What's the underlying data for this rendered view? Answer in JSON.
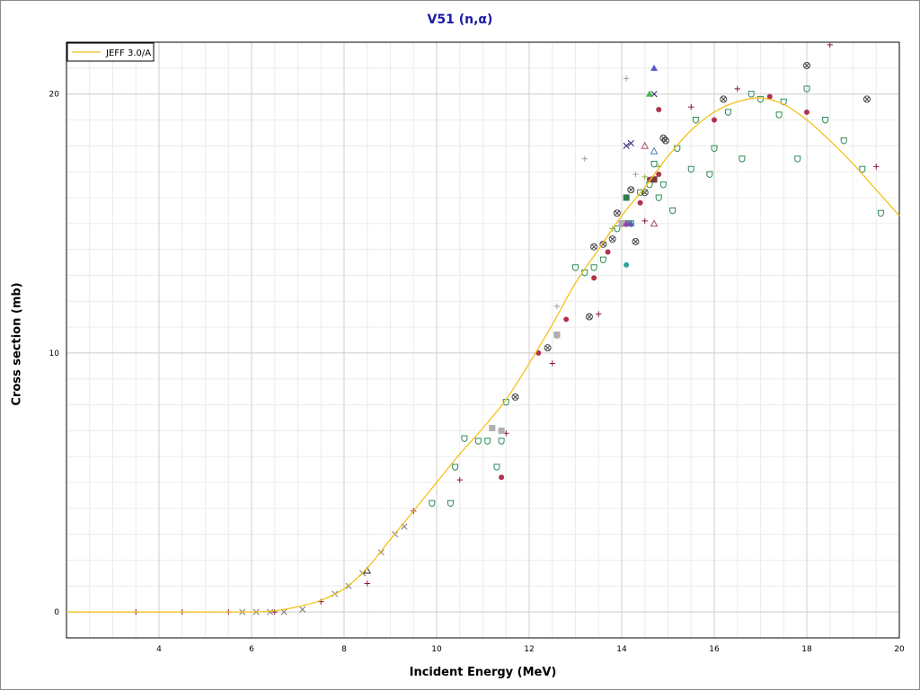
{
  "chart_data": {
    "type": "scatter",
    "title": "V51 (n,α)",
    "xlabel": "Incident Energy (MeV)",
    "ylabel": "Cross section (mb)",
    "xlim": [
      2.0,
      20.0
    ],
    "ylim": [
      -1.0,
      22.0
    ],
    "x_ticks": [
      4,
      6,
      8,
      10,
      12,
      14,
      16,
      18,
      20
    ],
    "y_ticks": [
      0,
      10,
      20
    ],
    "grid": true,
    "legend_position": "top-left",
    "colors": {
      "evaluation": "#f2c21b",
      "grid_major": "#cfcfcf",
      "grid_minor": "#ececec",
      "title": "#1a1aa6"
    },
    "series": [
      {
        "name": "JEFF 3.0/A",
        "kind": "line",
        "x": [
          2.0,
          3.0,
          4.0,
          5.0,
          6.0,
          6.5,
          7.0,
          7.5,
          8.0,
          8.5,
          9.0,
          9.5,
          10.0,
          10.5,
          11.0,
          11.5,
          12.0,
          12.5,
          13.0,
          13.5,
          14.0,
          14.5,
          15.0,
          15.5,
          16.0,
          16.5,
          17.0,
          17.5,
          18.0,
          18.5,
          19.0,
          19.5,
          20.0
        ],
        "y": [
          0,
          0,
          0,
          0,
          0,
          0.05,
          0.2,
          0.45,
          0.9,
          1.7,
          2.8,
          3.9,
          5.0,
          6.1,
          7.1,
          8.2,
          9.6,
          11.1,
          12.7,
          14.0,
          15.3,
          16.4,
          17.6,
          18.6,
          19.3,
          19.7,
          19.85,
          19.6,
          19.0,
          18.2,
          17.3,
          16.3,
          15.3
        ]
      }
    ],
    "experimental": [
      {
        "m": "plus",
        "c": "#8b1a3a",
        "p": [
          [
            3.5,
            0
          ],
          [
            4.5,
            0
          ],
          [
            5.5,
            0
          ],
          [
            6.5,
            0
          ],
          [
            7.5,
            0.4
          ],
          [
            8.5,
            1.1
          ],
          [
            9.5,
            3.9
          ],
          [
            10.5,
            5.1
          ],
          [
            11.5,
            6.9
          ],
          [
            12.5,
            9.6
          ],
          [
            13.5,
            11.5
          ],
          [
            14.5,
            15.1
          ],
          [
            15.5,
            19.5
          ],
          [
            16.5,
            20.2
          ],
          [
            18.5,
            21.9
          ],
          [
            19.5,
            17.2
          ]
        ]
      },
      {
        "m": "plus",
        "c": "#a0a0a0",
        "p": [
          [
            12.6,
            11.8
          ],
          [
            13.2,
            17.5
          ],
          [
            14.1,
            20.6
          ],
          [
            14.3,
            16.9
          ]
        ]
      },
      {
        "m": "plus",
        "c": "#8ab24a",
        "p": [
          [
            13.8,
            14.8
          ],
          [
            14.1,
            16.0
          ],
          [
            14.5,
            16.8
          ],
          [
            14.8,
            17.2
          ]
        ]
      },
      {
        "m": "x",
        "c": "#7a7a7a",
        "p": [
          [
            5.8,
            0
          ],
          [
            6.1,
            0
          ],
          [
            6.4,
            0
          ],
          [
            6.7,
            0
          ],
          [
            7.1,
            0.1
          ],
          [
            7.8,
            0.7
          ],
          [
            8.1,
            1.0
          ],
          [
            8.4,
            1.5
          ],
          [
            8.8,
            2.3
          ],
          [
            9.1,
            3.0
          ],
          [
            9.3,
            3.3
          ]
        ]
      },
      {
        "m": "x",
        "c": "#2b1f6e",
        "p": [
          [
            14.1,
            18.0
          ],
          [
            14.2,
            18.1
          ],
          [
            14.7,
            20.0
          ]
        ]
      },
      {
        "m": "circle",
        "c": "#b0334d",
        "p": [
          [
            11.4,
            5.2
          ],
          [
            12.2,
            10.0
          ],
          [
            12.8,
            11.3
          ],
          [
            13.4,
            12.9
          ],
          [
            13.7,
            13.9
          ],
          [
            14.4,
            15.8
          ],
          [
            14.6,
            16.7
          ],
          [
            14.8,
            16.9
          ],
          [
            14.8,
            19.4
          ],
          [
            16.0,
            19.0
          ],
          [
            17.2,
            19.9
          ],
          [
            18.0,
            19.3
          ]
        ]
      },
      {
        "m": "circle",
        "c": "#2aa3a3",
        "p": [
          [
            14.1,
            13.4
          ]
        ]
      },
      {
        "m": "shield",
        "c": "#2e8b57",
        "p": [
          [
            9.9,
            4.2
          ],
          [
            10.3,
            4.2
          ],
          [
            10.4,
            5.6
          ],
          [
            10.6,
            6.7
          ],
          [
            10.9,
            6.6
          ],
          [
            11.1,
            6.6
          ],
          [
            11.3,
            5.6
          ],
          [
            11.4,
            6.6
          ],
          [
            11.5,
            8.1
          ],
          [
            12.6,
            10.7
          ],
          [
            13.0,
            13.3
          ],
          [
            13.2,
            13.1
          ],
          [
            13.4,
            13.3
          ],
          [
            13.6,
            13.6
          ],
          [
            13.9,
            14.8
          ],
          [
            14.0,
            15.0
          ],
          [
            14.1,
            15.0
          ],
          [
            14.2,
            15.0
          ],
          [
            14.4,
            16.2
          ],
          [
            14.6,
            16.5
          ],
          [
            14.7,
            17.3
          ],
          [
            14.8,
            16.0
          ],
          [
            14.9,
            16.5
          ],
          [
            15.1,
            15.5
          ],
          [
            15.2,
            17.9
          ],
          [
            15.5,
            17.1
          ],
          [
            15.6,
            19.0
          ],
          [
            15.9,
            16.9
          ],
          [
            16.0,
            17.9
          ],
          [
            16.3,
            19.3
          ],
          [
            16.6,
            17.5
          ],
          [
            16.8,
            20.0
          ],
          [
            17.0,
            19.8
          ],
          [
            17.4,
            19.2
          ],
          [
            17.5,
            19.7
          ],
          [
            17.8,
            17.5
          ],
          [
            18.0,
            20.2
          ],
          [
            18.4,
            19.0
          ],
          [
            18.8,
            18.2
          ],
          [
            19.2,
            17.1
          ],
          [
            19.6,
            15.4
          ]
        ]
      },
      {
        "m": "circlex",
        "c": "#444444",
        "p": [
          [
            11.7,
            8.3
          ],
          [
            12.4,
            10.2
          ],
          [
            13.3,
            11.4
          ],
          [
            13.4,
            14.1
          ],
          [
            13.6,
            14.2
          ],
          [
            13.8,
            14.4
          ],
          [
            13.9,
            15.4
          ],
          [
            14.2,
            16.3
          ],
          [
            14.3,
            14.3
          ],
          [
            14.5,
            16.2
          ],
          [
            14.9,
            18.3
          ],
          [
            14.95,
            18.2
          ],
          [
            16.2,
            19.8
          ],
          [
            18.0,
            21.1
          ],
          [
            19.3,
            19.8
          ]
        ]
      },
      {
        "m": "square",
        "c": "#2e7a4e",
        "p": [
          [
            14.1,
            16.0
          ]
        ]
      },
      {
        "m": "square",
        "c": "#7a3a3a",
        "p": [
          [
            14.7,
            16.7
          ]
        ]
      },
      {
        "m": "square",
        "c": "#b0b0b0",
        "p": [
          [
            11.2,
            7.1
          ],
          [
            11.4,
            7.0
          ],
          [
            12.6,
            10.7
          ],
          [
            14.0,
            15.0
          ]
        ]
      },
      {
        "m": "triangle",
        "c": "#5a5acb",
        "p": [
          [
            14.1,
            15.0
          ],
          [
            14.2,
            15.0
          ],
          [
            14.7,
            21.0
          ]
        ]
      },
      {
        "m": "triangle",
        "c": "#a03fb0",
        "p": [
          [
            14.1,
            15.0
          ]
        ]
      },
      {
        "m": "triangle",
        "c": "#47b847",
        "p": [
          [
            14.6,
            20.0
          ]
        ]
      },
      {
        "m": "triangle-open",
        "c": "#333333",
        "p": [
          [
            8.5,
            1.6
          ]
        ]
      },
      {
        "m": "triangle-open",
        "c": "#b04b6b",
        "p": [
          [
            14.5,
            18.0
          ],
          [
            14.7,
            15.0
          ]
        ]
      },
      {
        "m": "triangle-open",
        "c": "#4a7ab0",
        "p": [
          [
            14.7,
            17.8
          ]
        ]
      }
    ]
  }
}
